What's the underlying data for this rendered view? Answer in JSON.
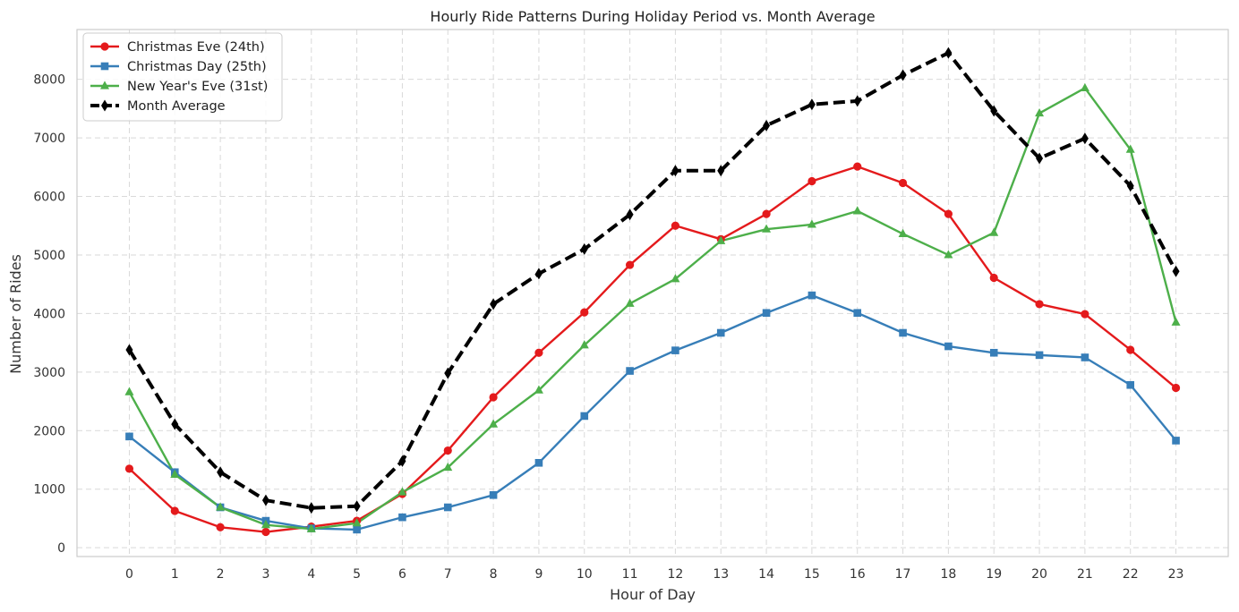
{
  "chart_data": {
    "type": "line",
    "title": "Hourly Ride Patterns During Holiday Period vs. Month Average",
    "xlabel": "Hour of Day",
    "ylabel": "Number of Rides",
    "x": [
      0,
      1,
      2,
      3,
      4,
      5,
      6,
      7,
      8,
      9,
      10,
      11,
      12,
      13,
      14,
      15,
      16,
      17,
      18,
      19,
      20,
      21,
      22,
      23
    ],
    "xticks": [
      "0",
      "1",
      "2",
      "3",
      "4",
      "5",
      "6",
      "7",
      "8",
      "9",
      "10",
      "11",
      "12",
      "13",
      "14",
      "15",
      "16",
      "17",
      "18",
      "19",
      "20",
      "21",
      "22",
      "23"
    ],
    "yticks": [
      "0",
      "1000",
      "2000",
      "3000",
      "4000",
      "5000",
      "6000",
      "7000",
      "8000"
    ],
    "ytick_values": [
      0,
      1000,
      2000,
      3000,
      4000,
      5000,
      6000,
      7000,
      8000
    ],
    "xlim": [
      -1.15,
      24.15
    ],
    "ylim": [
      -150,
      8850
    ],
    "grid": true,
    "legend_position": "top-left",
    "series": [
      {
        "name": "Christmas Eve (24th)",
        "color": "#e41a1c",
        "marker": "circle",
        "dashed": false,
        "values": [
          1350,
          630,
          350,
          270,
          360,
          460,
          920,
          1660,
          2570,
          3330,
          4020,
          4830,
          5500,
          5270,
          5700,
          6260,
          6510,
          6230,
          5700,
          4610,
          4160,
          3990,
          3380,
          2730
        ]
      },
      {
        "name": "Christmas Day (25th)",
        "color": "#377eb8",
        "marker": "square",
        "dashed": false,
        "values": [
          1900,
          1290,
          690,
          460,
          330,
          310,
          520,
          690,
          900,
          1450,
          2250,
          3020,
          3370,
          3670,
          4010,
          4310,
          4010,
          3670,
          3440,
          3330,
          3290,
          3250,
          2780,
          1830
        ]
      },
      {
        "name": "New Year's Eve (31st)",
        "color": "#4daf4a",
        "marker": "triangle",
        "dashed": false,
        "values": [
          2660,
          1250,
          690,
          390,
          320,
          420,
          950,
          1370,
          2110,
          2690,
          3460,
          4170,
          4590,
          5240,
          5440,
          5520,
          5750,
          5360,
          5000,
          5380,
          7420,
          7850,
          6800,
          3850
        ]
      },
      {
        "name": "Month Average",
        "color": "#000000",
        "marker": "diamond",
        "dashed": true,
        "values": [
          3380,
          2110,
          1290,
          810,
          680,
          710,
          1480,
          2980,
          4160,
          4680,
          5100,
          5690,
          6440,
          6440,
          7210,
          7570,
          7630,
          8070,
          8450,
          7460,
          6650,
          6990,
          6180,
          4720
        ]
      }
    ]
  }
}
